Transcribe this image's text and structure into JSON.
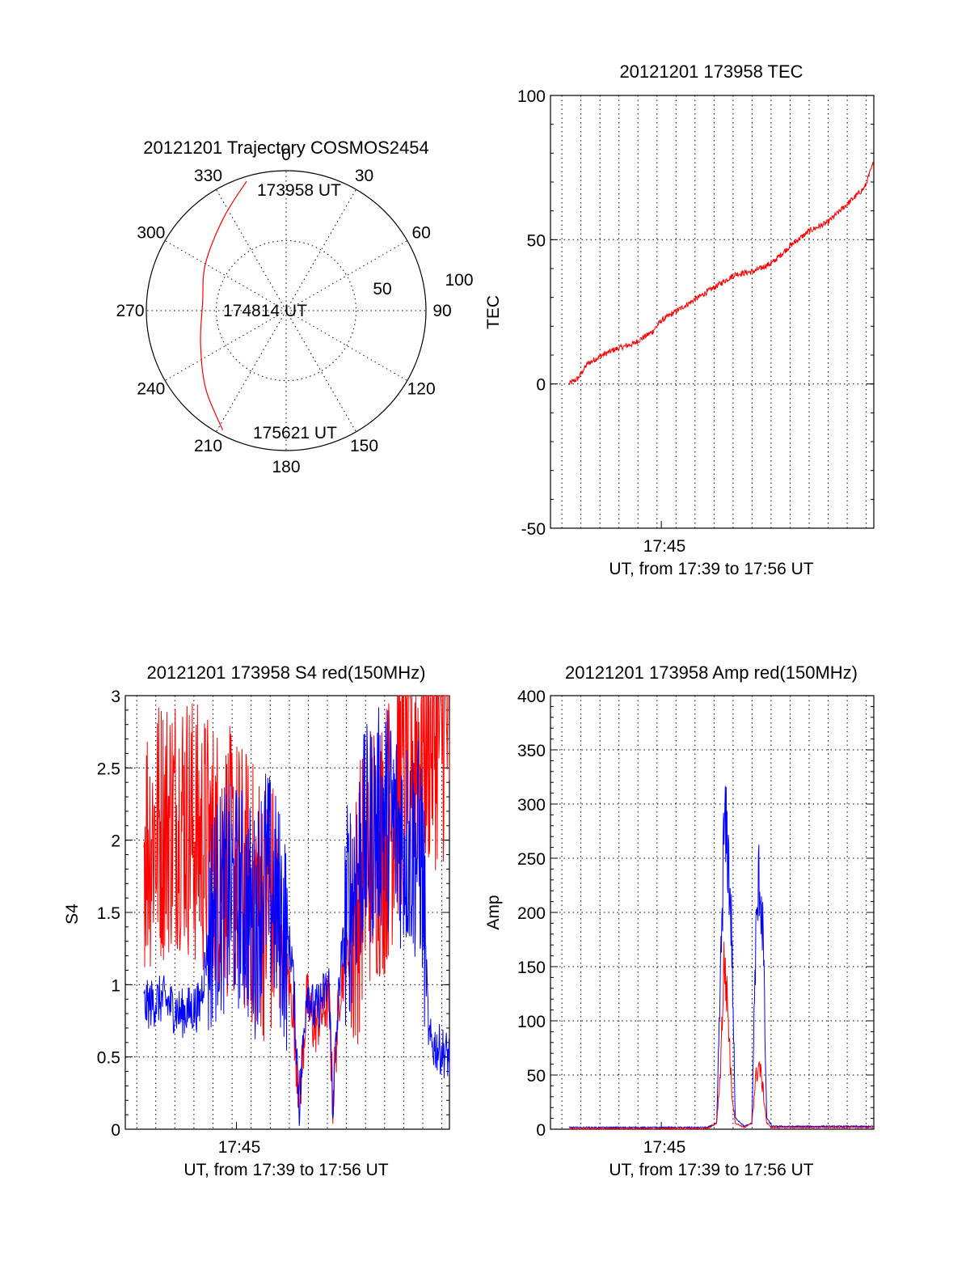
{
  "colors": {
    "red": "#ff0000",
    "blue": "#0000ff",
    "axis": "#000000",
    "background": "#ffffff"
  },
  "chart_data": [
    {
      "id": "trajectory",
      "type": "polar",
      "title": "20121201 Trajectory COSMOS2454",
      "azimuth_labels": [
        "0",
        "30",
        "60",
        "90",
        "120",
        "150",
        "180",
        "210",
        "240",
        "270",
        "300",
        "330"
      ],
      "radial_labels": [
        "50",
        "100"
      ],
      "track_time_labels": [
        "173958 UT",
        "174814 UT",
        "175621 UT"
      ],
      "track": [
        {
          "az": 343,
          "el": 3
        },
        {
          "az": 326,
          "el": 18
        },
        {
          "az": 300,
          "el": 30
        },
        {
          "az": 275,
          "el": 36
        },
        {
          "az": 249,
          "el": 31
        },
        {
          "az": 226,
          "el": 18
        },
        {
          "az": 208,
          "el": 3
        }
      ]
    },
    {
      "id": "tec",
      "type": "line",
      "title": "20121201 173958 TEC",
      "ylabel": "TEC",
      "xlabel": "UT, from 17:39 to 17:56 UT",
      "xtick_labels": [
        "17:45"
      ],
      "ytick_labels": [
        "-50",
        "0",
        "50",
        "100"
      ],
      "ylim": [
        -50,
        100
      ],
      "xlim_minutes": [
        39.0,
        56.5
      ],
      "series": [
        {
          "name": "TEC",
          "color": "red",
          "x": [
            40.0,
            40.5,
            41.0,
            41.8,
            42.5,
            43.5,
            44.5,
            45.0,
            46.0,
            47.0,
            48.0,
            49.0,
            50.0,
            51.0,
            52.0,
            53.0,
            54.0,
            55.0,
            56.0,
            56.5
          ],
          "y": [
            0,
            2,
            7,
            10,
            12,
            14,
            18,
            22,
            26,
            30,
            34,
            38,
            39,
            42,
            48,
            53,
            56,
            62,
            68,
            77
          ]
        }
      ]
    },
    {
      "id": "s4",
      "type": "line",
      "title": "20121201 173958 S4 red(150MHz)",
      "ylabel": "S4",
      "xlabel": "UT, from 17:39 to 17:56 UT",
      "xtick_labels": [
        "17:45"
      ],
      "ytick_labels": [
        "0",
        "0.5",
        "1",
        "1.5",
        "2",
        "2.5",
        "3"
      ],
      "ylim": [
        0,
        3
      ],
      "xlim_minutes": [
        39.0,
        56.5
      ],
      "series": [
        {
          "name": "red (150MHz)",
          "color": "red",
          "x": [
            40.0,
            41.0,
            42.0,
            43.0,
            44.0,
            45.0,
            46.0,
            47.0,
            48.0,
            48.4,
            48.8,
            49.2,
            50.0,
            50.2,
            50.6,
            51.0,
            51.5,
            52.0,
            53.0,
            54.0,
            55.0,
            56.5
          ],
          "y": [
            2.0,
            2.1,
            2.2,
            2.0,
            1.9,
            1.8,
            1.6,
            1.5,
            0.9,
            0.2,
            0.9,
            0.7,
            0.9,
            0.2,
            1.0,
            1.2,
            1.5,
            1.9,
            2.0,
            2.5,
            2.7,
            2.8
          ]
        },
        {
          "name": "blue",
          "color": "blue",
          "x": [
            40.0,
            41.0,
            42.0,
            43.0,
            43.7,
            44.5,
            45.3,
            46.0,
            46.5,
            47.0,
            48.0,
            48.4,
            48.8,
            49.2,
            50.0,
            50.2,
            50.6,
            51.0,
            51.5,
            52.0,
            53.0,
            54.0,
            55.0,
            55.4,
            56.0,
            56.5
          ],
          "y": [
            0.85,
            0.9,
            0.8,
            0.85,
            1.5,
            1.6,
            1.6,
            1.4,
            1.8,
            1.6,
            1.2,
            0.15,
            1.0,
            0.8,
            1.0,
            0.15,
            1.1,
            1.5,
            1.8,
            2.0,
            2.2,
            2.0,
            1.9,
            0.6,
            0.55,
            0.5
          ]
        }
      ]
    },
    {
      "id": "amp",
      "type": "line",
      "title": "20121201 173958 Amp red(150MHz)",
      "ylabel": "Amp",
      "xlabel": "UT, from 17:39 to 17:56 UT",
      "xtick_labels": [
        "17:45"
      ],
      "ytick_labels": [
        "0",
        "50",
        "100",
        "150",
        "200",
        "250",
        "300",
        "350",
        "400"
      ],
      "ylim": [
        0,
        400
      ],
      "xlim_minutes": [
        39.0,
        56.5
      ],
      "series": [
        {
          "name": "blue",
          "color": "blue",
          "x": [
            40.0,
            47.5,
            48.0,
            48.2,
            48.4,
            48.6,
            48.8,
            49.0,
            49.5,
            49.9,
            50.1,
            50.3,
            50.5,
            50.7,
            51.0,
            56.5
          ],
          "y": [
            1,
            1,
            5,
            150,
            300,
            280,
            200,
            10,
            2,
            5,
            180,
            255,
            200,
            10,
            2,
            2
          ]
        },
        {
          "name": "red (150MHz)",
          "color": "red",
          "x": [
            40.0,
            47.5,
            48.0,
            48.2,
            48.4,
            48.6,
            48.8,
            49.0,
            49.5,
            49.9,
            50.1,
            50.3,
            50.5,
            50.7,
            51.0,
            56.5
          ],
          "y": [
            0,
            0,
            5,
            60,
            170,
            120,
            40,
            5,
            1,
            5,
            50,
            65,
            40,
            5,
            1,
            1
          ]
        }
      ]
    }
  ]
}
